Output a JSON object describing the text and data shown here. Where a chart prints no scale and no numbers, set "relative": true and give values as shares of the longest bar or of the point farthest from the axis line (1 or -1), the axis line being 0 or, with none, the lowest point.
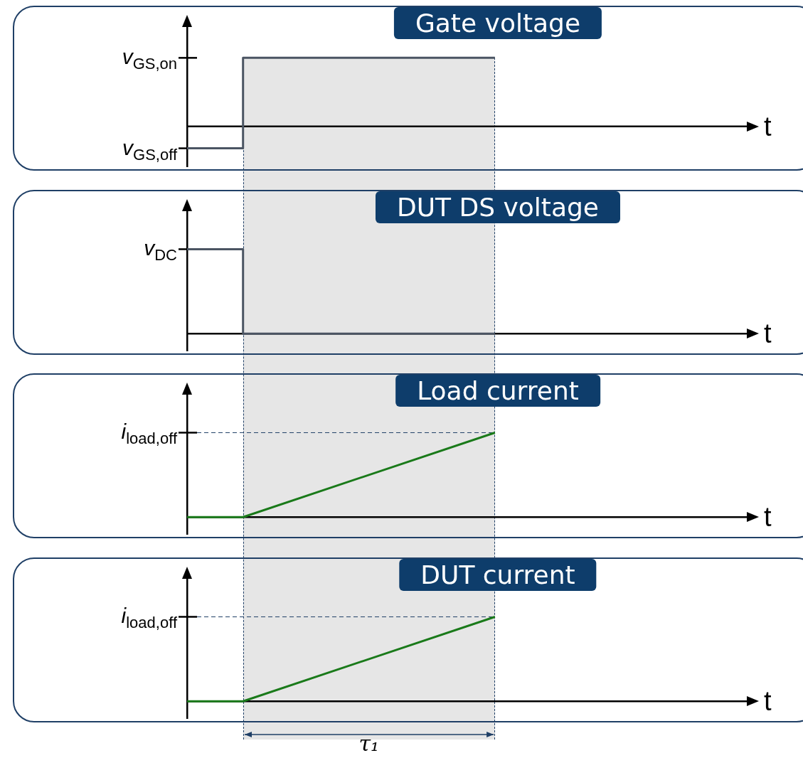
{
  "chart_data": [
    {
      "type": "step",
      "title": "Gate voltage",
      "xlabel": "t",
      "relative": true,
      "categories": [
        null,
        null,
        null,
        null,
        null,
        null,
        null,
        null,
        null,
        null,
        null,
        null,
        null,
        null,
        null,
        null,
        null,
        null,
        null,
        null,
        null
      ],
      "series": [
        {
          "color": "#4b5563",
          "values": [
            -0.32,
            null,
            1,
            null,
            null,
            null,
            null,
            null,
            null,
            null,
            null,
            1,
            null,
            null,
            null,
            null,
            null,
            null,
            null,
            null,
            null
          ]
        }
      ],
      "annotations": [
        "v$_{GS,on}$",
        "v$_{GS,off}$"
      ]
    },
    {
      "type": "step",
      "title": "DUT DS voltage",
      "xlabel": "t",
      "relative": true,
      "categories": [
        null,
        null,
        null,
        null,
        null,
        null,
        null,
        null,
        null,
        null,
        null,
        null,
        null,
        null,
        null,
        null,
        null,
        null,
        null,
        null,
        null
      ],
      "series": [
        {
          "color": "#4b5563",
          "values": [
            1,
            null,
            0,
            null,
            null,
            null,
            null,
            null,
            null,
            null,
            null,
            0,
            null,
            null,
            null,
            null,
            null,
            null,
            null,
            null,
            null
          ]
        }
      ],
      "annotations": [
        "v$_{DC}$"
      ]
    },
    {
      "type": "line",
      "title": "Load current",
      "xlabel": "t",
      "relative": true,
      "categories": [
        null,
        null,
        null,
        null,
        null,
        null,
        null,
        null,
        null,
        null,
        null,
        null,
        null,
        null,
        null,
        null,
        null,
        null,
        null,
        null,
        null
      ],
      "series": [
        {
          "color": "#1a7a1a",
          "values": [
            0,
            null,
            0,
            null,
            null,
            null,
            null,
            null,
            null,
            null,
            null,
            1,
            null,
            null,
            null,
            null,
            null,
            null,
            null,
            null,
            null
          ]
        }
      ],
      "ref_lines": [
        {
          "axis": "y",
          "value": 1,
          "color": "#1f3f66",
          "line_style": "dashed"
        }
      ],
      "annotations": [
        "i$_{load,off}$"
      ]
    },
    {
      "type": "line",
      "title": "DUT current",
      "xlabel": "t",
      "relative": true,
      "categories": [
        null,
        null,
        null,
        null,
        null,
        null,
        null,
        null,
        null,
        null,
        null,
        null,
        null,
        null,
        null,
        null,
        null,
        null,
        null,
        null,
        null
      ],
      "series": [
        {
          "color": "#1a7a1a",
          "values": [
            0,
            null,
            0,
            null,
            null,
            null,
            null,
            null,
            null,
            null,
            null,
            1,
            null,
            null,
            null,
            null,
            null,
            null,
            null,
            null,
            null
          ]
        }
      ],
      "ref_lines": [
        {
          "axis": "y",
          "value": 1,
          "color": "#1f3f66",
          "line_style": "dashed"
        }
      ],
      "annotations": [
        "i$_{load,off}$",
        "τ₁"
      ]
    }
  ]
}
